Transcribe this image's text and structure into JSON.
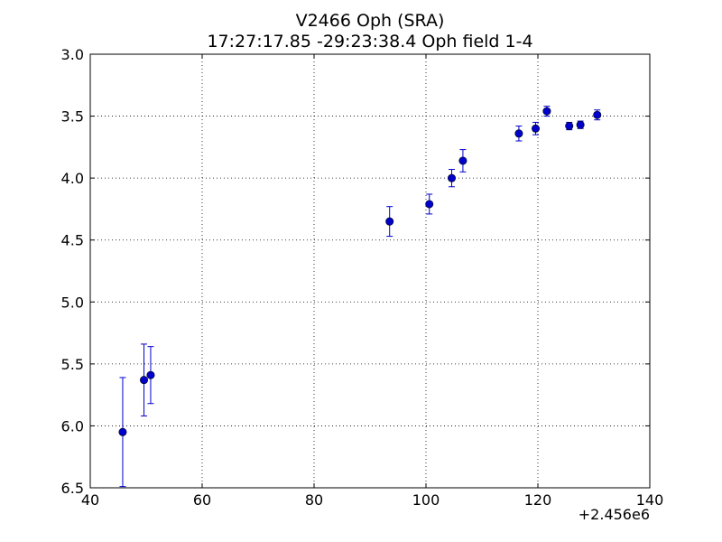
{
  "chart_data": {
    "type": "scatter",
    "title": "V2466 Oph (SRA)",
    "subtitle": "17:27:17.85 -29:23:38.4 Oph field 1-4",
    "xlabel": "",
    "ylabel": "",
    "x_offset_label": "+2.456e6",
    "xlim": [
      40,
      140
    ],
    "ylim": [
      6.5,
      3.0
    ],
    "y_inverted": true,
    "grid": true,
    "grid_style": "dotted",
    "x_ticks": [
      40,
      60,
      80,
      100,
      120,
      140
    ],
    "x_tick_labels": [
      "40",
      "60",
      "80",
      "100",
      "120",
      "140"
    ],
    "y_ticks": [
      3.0,
      3.5,
      4.0,
      4.5,
      5.0,
      5.5,
      6.0,
      6.5
    ],
    "y_tick_labels": [
      "3.0",
      "3.5",
      "4.0",
      "4.5",
      "5.0",
      "5.5",
      "6.0",
      "6.5"
    ],
    "marker_color": "#0000cc",
    "errorbar_color": "#0000cc",
    "series": [
      {
        "points": [
          {
            "x": 45.8,
            "y": 6.05,
            "yerr": 0.44
          },
          {
            "x": 49.6,
            "y": 5.63,
            "yerr": 0.29
          },
          {
            "x": 50.8,
            "y": 5.59,
            "yerr": 0.23
          },
          {
            "x": 93.5,
            "y": 4.35,
            "yerr": 0.12
          },
          {
            "x": 100.6,
            "y": 4.21,
            "yerr": 0.08
          },
          {
            "x": 104.6,
            "y": 4.0,
            "yerr": 0.07
          },
          {
            "x": 106.6,
            "y": 3.86,
            "yerr": 0.09
          },
          {
            "x": 116.6,
            "y": 3.64,
            "yerr": 0.06
          },
          {
            "x": 119.6,
            "y": 3.6,
            "yerr": 0.05
          },
          {
            "x": 121.6,
            "y": 3.46,
            "yerr": 0.04
          },
          {
            "x": 125.6,
            "y": 3.58,
            "yerr": 0.03
          },
          {
            "x": 127.6,
            "y": 3.57,
            "yerr": 0.03
          },
          {
            "x": 130.6,
            "y": 3.49,
            "yerr": 0.04
          }
        ]
      }
    ]
  }
}
